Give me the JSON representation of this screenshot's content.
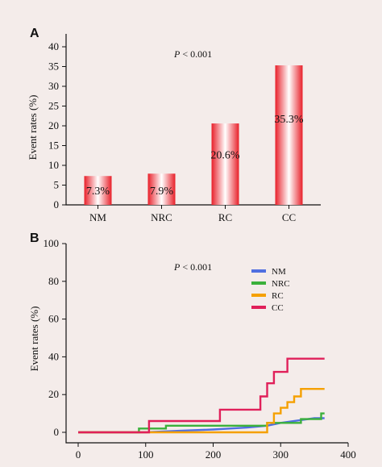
{
  "chart_data": [
    {
      "panel": "A",
      "type": "bar",
      "categories": [
        "NM",
        "NRC",
        "RC",
        "CC"
      ],
      "values": [
        7.3,
        7.9,
        20.6,
        35.3
      ],
      "data_labels": [
        "7.3%",
        "7.9%",
        "20.6%",
        "35.3%"
      ],
      "annotation_prefix": "P",
      "annotation_suffix": " < 0.001",
      "ylabel": "Event rates (%)",
      "ylim": [
        0,
        40
      ],
      "yticks": [
        0,
        5,
        10,
        15,
        20,
        25,
        30,
        35,
        40
      ],
      "bar_color": "#e8202a",
      "grid": false
    },
    {
      "panel": "B",
      "type": "line",
      "annotation_prefix": "P",
      "annotation_suffix": " < 0.001",
      "ylabel": "Event rates (%)",
      "xlim": [
        0,
        400
      ],
      "ylim": [
        0,
        100
      ],
      "xticks": [
        0,
        100,
        200,
        300,
        400
      ],
      "yticks": [
        0,
        20,
        40,
        60,
        80,
        100
      ],
      "legend_position": "top-right",
      "grid": false,
      "series": [
        {
          "name": "NM",
          "color": "#4f6fe0",
          "x": [
            0,
            100,
            150,
            200,
            250,
            280,
            300,
            330,
            350,
            365
          ],
          "y": [
            0,
            0,
            0.8,
            1.5,
            2.5,
            3.5,
            5,
            6.5,
            7.5,
            7.5
          ]
        },
        {
          "name": "NRC",
          "color": "#3bb03b",
          "x": [
            0,
            90,
            90,
            130,
            130,
            280,
            280,
            330,
            330,
            360,
            360,
            365
          ],
          "y": [
            0,
            0,
            2,
            2,
            3.5,
            3.5,
            5,
            5,
            7,
            7,
            10,
            10
          ]
        },
        {
          "name": "RC",
          "color": "#f5a000",
          "x": [
            0,
            280,
            280,
            290,
            290,
            300,
            300,
            310,
            310,
            320,
            320,
            330,
            330,
            365
          ],
          "y": [
            0,
            0,
            5,
            5,
            10,
            10,
            13,
            13,
            16,
            16,
            19,
            19,
            23,
            23
          ]
        },
        {
          "name": "CC",
          "color": "#e0205a",
          "x": [
            0,
            105,
            105,
            210,
            210,
            270,
            270,
            280,
            280,
            290,
            290,
            310,
            310,
            365
          ],
          "y": [
            0,
            0,
            6,
            6,
            12,
            12,
            19,
            19,
            26,
            26,
            32,
            32,
            39,
            39
          ]
        }
      ]
    }
  ]
}
